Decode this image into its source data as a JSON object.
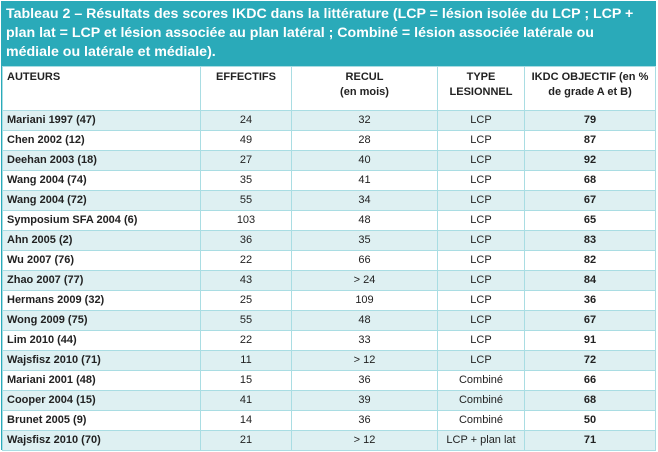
{
  "caption": "Tableau 2 – Résultats des scores IKDC dans la littérature (LCP = lésion isolée du LCP ; LCP + plan lat = LCP et lésion associée au plan latéral ; Combiné = lésion associée latérale ou médiale ou latérale et médiale).",
  "columns": [
    {
      "line1": "AUTEURS",
      "line2": ""
    },
    {
      "line1": "EFFECTIFS",
      "line2": ""
    },
    {
      "line1": "RECUL",
      "line2": "(en mois)"
    },
    {
      "line1": "TYPE",
      "line2": "LESIONNEL"
    },
    {
      "line1": "IKDC OBJECTIF (en %",
      "line2": "de grade A et B)"
    }
  ],
  "rows": [
    {
      "author": "Mariani 1997 (47)",
      "n": "24",
      "followup": "32",
      "type": "LCP",
      "ikdc": "79"
    },
    {
      "author": "Chen 2002 (12)",
      "n": "49",
      "followup": "28",
      "type": "LCP",
      "ikdc": "87"
    },
    {
      "author": "Deehan 2003 (18)",
      "n": "27",
      "followup": "40",
      "type": "LCP",
      "ikdc": "92"
    },
    {
      "author": "Wang 2004 (74)",
      "n": "35",
      "followup": "41",
      "type": "LCP",
      "ikdc": "68"
    },
    {
      "author": "Wang 2004 (72)",
      "n": "55",
      "followup": "34",
      "type": "LCP",
      "ikdc": "67"
    },
    {
      "author": "Symposium SFA 2004 (6)",
      "n": "103",
      "followup": "48",
      "type": "LCP",
      "ikdc": "65"
    },
    {
      "author": "Ahn 2005 (2)",
      "n": "36",
      "followup": "35",
      "type": "LCP",
      "ikdc": "83"
    },
    {
      "author": "Wu 2007 (76)",
      "n": "22",
      "followup": "66",
      "type": "LCP",
      "ikdc": "82"
    },
    {
      "author": "Zhao 2007 (77)",
      "n": "43",
      "followup": "> 24",
      "type": "LCP",
      "ikdc": "84"
    },
    {
      "author": "Hermans 2009 (32)",
      "n": "25",
      "followup": "109",
      "type": "LCP",
      "ikdc": "36"
    },
    {
      "author": "Wong 2009 (75)",
      "n": "55",
      "followup": "48",
      "type": "LCP",
      "ikdc": "67"
    },
    {
      "author": "Lim 2010 (44)",
      "n": "22",
      "followup": "33",
      "type": "LCP",
      "ikdc": "91"
    },
    {
      "author": "Wajsfisz 2010 (71)",
      "n": "11",
      "followup": "> 12",
      "type": "LCP",
      "ikdc": "72"
    },
    {
      "author": "Mariani 2001 (48)",
      "n": "15",
      "followup": "36",
      "type": "Combiné",
      "ikdc": "66"
    },
    {
      "author": "Cooper 2004 (15)",
      "n": "41",
      "followup": "39",
      "type": "Combiné",
      "ikdc": "68"
    },
    {
      "author": "Brunet 2005 (9)",
      "n": "14",
      "followup": "36",
      "type": "Combiné",
      "ikdc": "50"
    },
    {
      "author": "Wajsfisz 2010 (70)",
      "n": "21",
      "followup": "> 12",
      "type": "LCP + plan lat",
      "ikdc": "71"
    }
  ]
}
